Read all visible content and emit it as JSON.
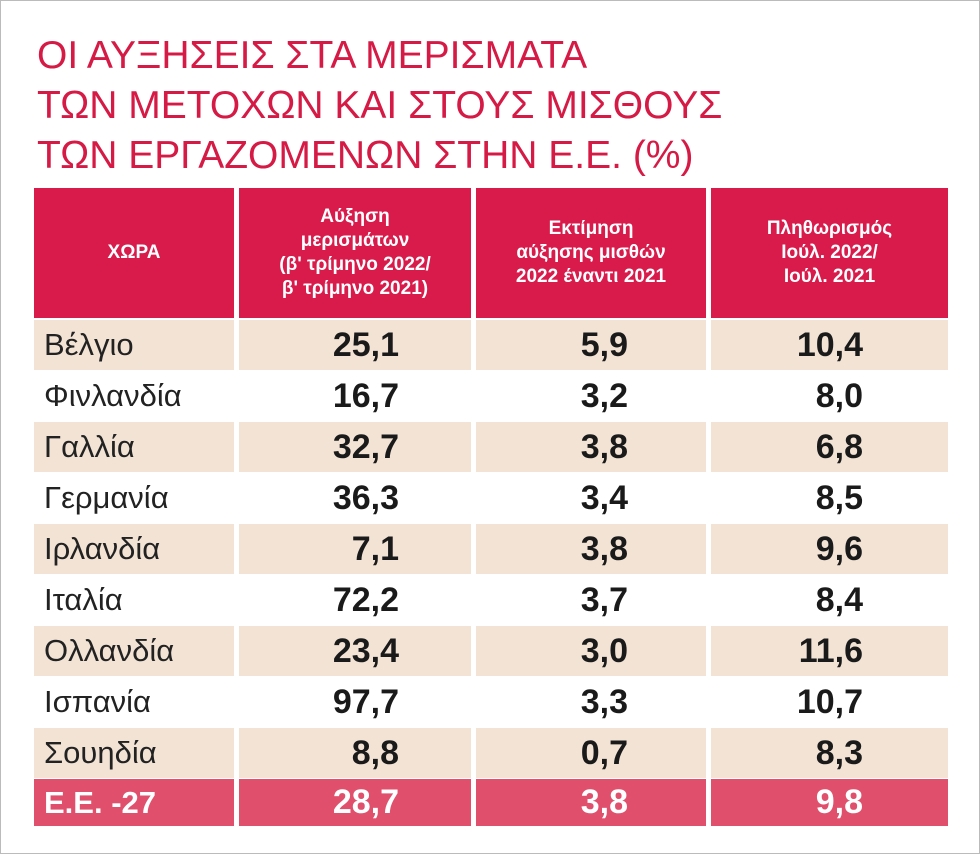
{
  "title": [
    "ΟΙ ΑΥΞΗΣΕΙΣ ΣΤΑ ΜΕΡΙΣΜΑΤΑ",
    "ΤΩΝ ΜΕΤΟΧΩΝ ΚΑΙ ΣΤΟΥΣ ΜΙΣΘΟΥΣ",
    "ΤΩΝ ΕΡΓΑΖΟΜΕΝΩΝ ΣΤΗΝ Ε.Ε. (%)"
  ],
  "table": {
    "header": [
      [
        "ΧΩΡΑ"
      ],
      [
        "Αύξηση",
        "μερισμάτων",
        "(β' τρίμηνο 2022/",
        "β' τρίμηνο 2021)"
      ],
      [
        "Εκτίμηση",
        "αύξησης μισθών",
        "2022 έναντι 2021"
      ],
      [
        "Πληθωρισμός",
        "Ιούλ. 2022/",
        "Ιούλ. 2021"
      ]
    ],
    "rows": [
      [
        "Βέλγιο",
        "25,1",
        "5,9",
        "10,4"
      ],
      [
        "Φινλανδία",
        "16,7",
        "3,2",
        "8,0"
      ],
      [
        "Γαλλία",
        "32,7",
        "3,8",
        "6,8"
      ],
      [
        "Γερμανία",
        "36,3",
        "3,4",
        "8,5"
      ],
      [
        "Ιρλανδία",
        "7,1",
        "3,8",
        "9,6"
      ],
      [
        "Ιταλία",
        "72,2",
        "3,7",
        "8,4"
      ],
      [
        "Ολλανδία",
        "23,4",
        "3,0",
        "11,6"
      ],
      [
        "Ισπανία",
        "97,7",
        "3,3",
        "10,7"
      ],
      [
        "Σουηδία",
        "8,8",
        "0,7",
        "8,3"
      ]
    ],
    "total": [
      "Ε.Ε. -27",
      "28,7",
      "3,8",
      "9,8"
    ]
  }
}
